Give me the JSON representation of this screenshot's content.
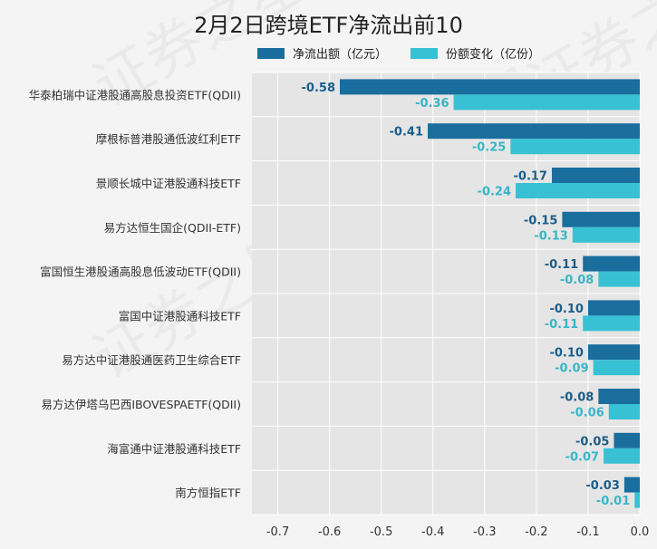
{
  "chart_data": {
    "type": "bar",
    "orientation": "horizontal",
    "title": "2月2日跨境ETF净流出前10",
    "categories": [
      "华泰柏瑞中证港股通高股息投资ETF(QDII)",
      "摩根标普港股通低波红利ETF",
      "景顺长城中证港股通科技ETF",
      "易方达恒生国企(QDII-ETF)",
      "富国恒生港股通高股息低波动ETF(QDII)",
      "富国中证港股通科技ETF",
      "易方达中证港股通医药卫生综合ETF",
      "易方达伊塔乌巴西IBOVESPAETF(QDII)",
      "海富通中证港股通科技ETF",
      "南方恒指ETF"
    ],
    "series": [
      {
        "name": "净流出额（亿元）",
        "color": "#1a6e9e",
        "label_color": "#1a5e8a",
        "values": [
          -0.58,
          -0.41,
          -0.17,
          -0.15,
          -0.11,
          -0.1,
          -0.1,
          -0.08,
          -0.05,
          -0.03
        ],
        "labels": [
          "-0.58",
          "-0.41",
          "-0.17",
          "-0.15",
          "-0.11",
          "-0.10",
          "-0.10",
          "-0.08",
          "-0.05",
          "-0.03"
        ]
      },
      {
        "name": "份额变化（亿份）",
        "color": "#38c1d4",
        "label_color": "#38b6c8",
        "values": [
          -0.36,
          -0.25,
          -0.24,
          -0.13,
          -0.08,
          -0.11,
          -0.09,
          -0.06,
          -0.07,
          -0.01
        ],
        "labels": [
          "-0.36",
          "-0.25",
          "-0.24",
          "-0.13",
          "-0.08",
          "-0.11",
          "-0.09",
          "-0.06",
          "-0.07",
          "-0.01"
        ]
      }
    ],
    "xlim": [
      -0.75,
      0.0
    ],
    "xticks": [
      -0.7,
      -0.6,
      -0.5,
      -0.4,
      -0.3,
      -0.2,
      -0.1,
      0.0
    ],
    "xtick_labels": [
      "-0.7",
      "-0.6",
      "-0.5",
      "-0.4",
      "-0.3",
      "-0.2",
      "-0.1",
      "0.0"
    ],
    "grid": true,
    "legend_position": "top"
  },
  "watermark": "证券之星",
  "colors": {
    "plot_bg": "#e5e5e5",
    "grid": "#ffffff"
  }
}
